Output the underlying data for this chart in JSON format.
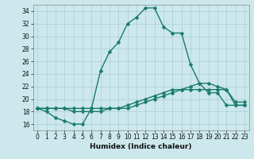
{
  "xlabel": "Humidex (Indice chaleur)",
  "background_color": "#cce8ec",
  "grid_color": "#aaccd4",
  "line_color": "#1a7a6e",
  "xlim": [
    -0.5,
    23.5
  ],
  "ylim": [
    15,
    35
  ],
  "yticks": [
    16,
    18,
    20,
    22,
    24,
    26,
    28,
    30,
    32,
    34
  ],
  "xticks": [
    0,
    1,
    2,
    3,
    4,
    5,
    6,
    7,
    8,
    9,
    10,
    11,
    12,
    13,
    14,
    15,
    16,
    17,
    18,
    19,
    20,
    21,
    22,
    23
  ],
  "x": [
    0,
    1,
    2,
    3,
    4,
    5,
    6,
    7,
    8,
    9,
    10,
    11,
    12,
    13,
    14,
    15,
    16,
    17,
    18,
    19,
    20,
    21,
    22,
    23
  ],
  "line1": [
    18.5,
    18.0,
    17.0,
    16.5,
    16.0,
    16.0,
    18.5,
    24.5,
    27.5,
    29.0,
    32.0,
    33.0,
    34.5,
    34.5,
    31.5,
    30.5,
    30.5,
    25.5,
    22.5,
    21.0,
    21.0,
    19.0,
    19.0,
    19.0
  ],
  "line2": [
    18.5,
    18.5,
    18.5,
    18.5,
    18.5,
    18.5,
    18.5,
    18.5,
    18.5,
    18.5,
    18.5,
    19.0,
    19.5,
    20.0,
    20.5,
    21.0,
    21.5,
    22.0,
    22.5,
    22.5,
    22.0,
    21.5,
    19.0,
    19.0
  ],
  "line3": [
    18.5,
    18.5,
    18.5,
    18.5,
    18.0,
    18.0,
    18.0,
    18.0,
    18.5,
    18.5,
    19.0,
    19.5,
    20.0,
    20.5,
    21.0,
    21.5,
    21.5,
    21.5,
    21.5,
    21.5,
    21.5,
    21.5,
    19.5,
    19.5
  ],
  "marker_size": 2.5,
  "linewidth": 1.0,
  "tick_fontsize": 5.5,
  "xlabel_fontsize": 6.5
}
